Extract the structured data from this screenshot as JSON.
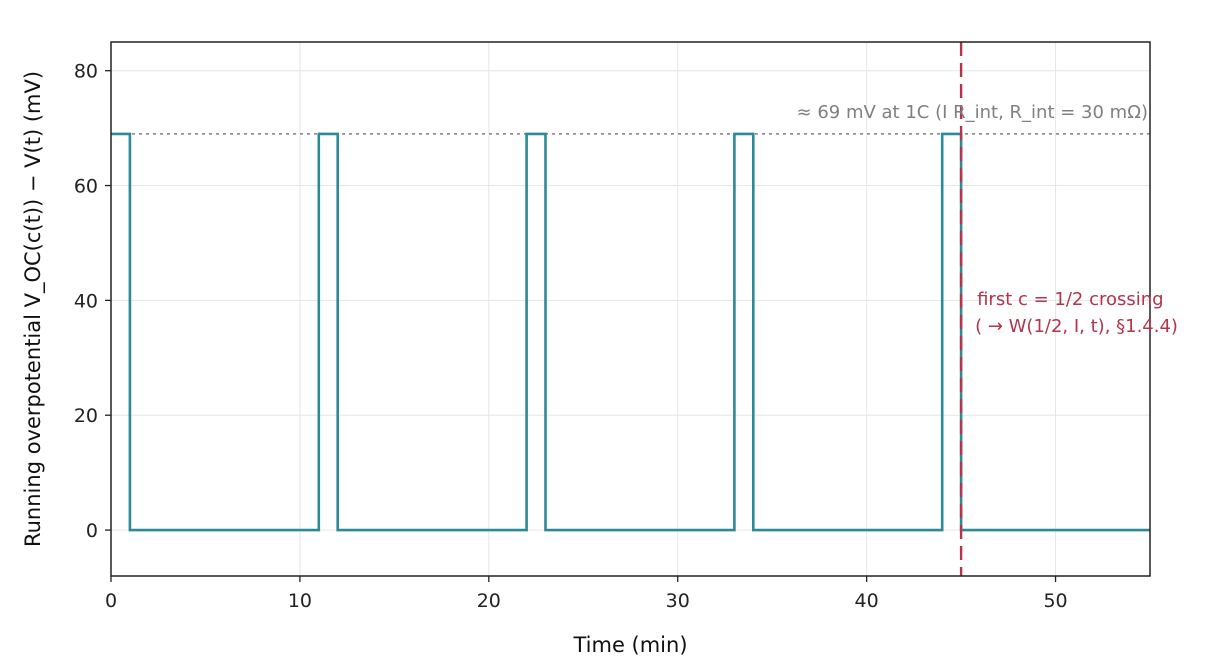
{
  "chart_data": {
    "type": "line",
    "xlabel": "Time (min)",
    "ylabel": "Running overpotential  V_OC(c(t)) − V(t)  (mV)",
    "xlim": [
      0,
      55
    ],
    "ylim": [
      -8,
      85
    ],
    "xticks": [
      0,
      10,
      20,
      30,
      40,
      50
    ],
    "yticks": [
      0,
      20,
      40,
      60,
      80
    ],
    "grid": true,
    "series": [
      {
        "x": [
          0,
          1,
          1,
          11,
          11,
          12,
          12,
          22,
          22,
          23,
          23,
          33,
          33,
          34,
          34,
          44,
          44,
          45,
          45,
          55
        ],
        "y": [
          69,
          69,
          0,
          0,
          69,
          69,
          0,
          0,
          69,
          69,
          0,
          0,
          69,
          69,
          0,
          0,
          69,
          69,
          0,
          0
        ],
        "color": "#2b8a96"
      }
    ],
    "reference_line": {
      "y": 69,
      "style": "dotted",
      "color": "#808080",
      "label": "≈ 69 mV at 1C (I R_int, R_int = 30 mΩ)"
    },
    "vertical_marker": {
      "x": 45,
      "style": "dashed",
      "color": "#b5334b",
      "label_line1": "first c = 1/2 crossing",
      "label_line2": "( → W(1/2, I, t), §1.4.4)"
    }
  }
}
